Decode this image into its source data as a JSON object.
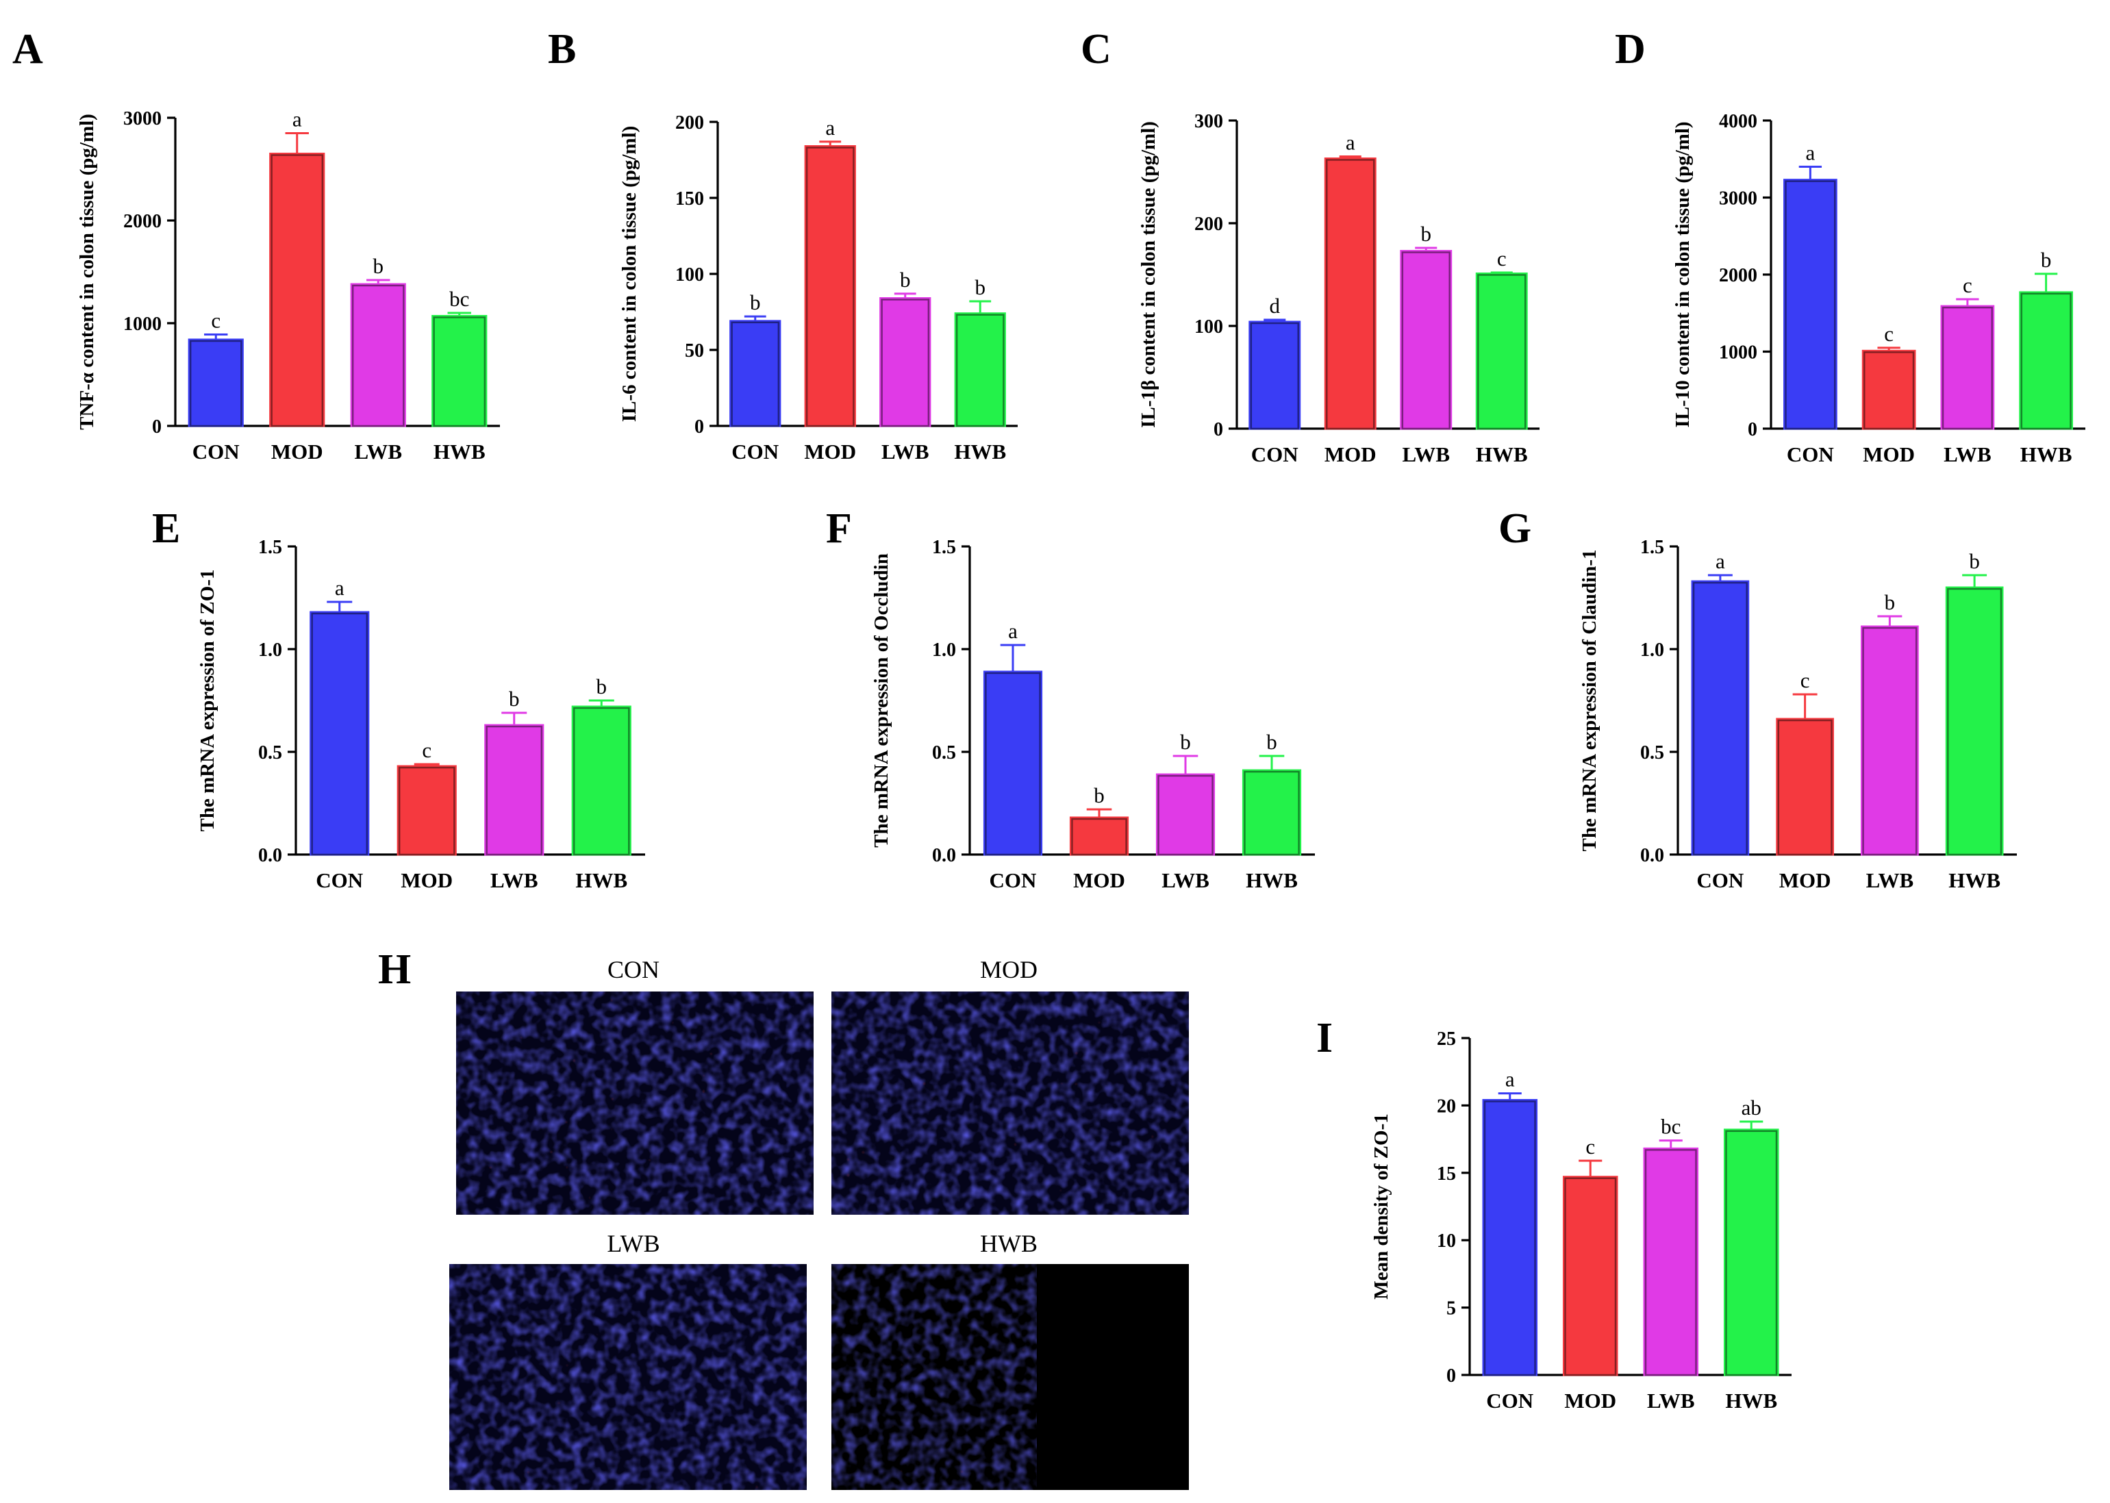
{
  "figure": {
    "panel_labels": [
      "A",
      "B",
      "C",
      "D",
      "E",
      "F",
      "G",
      "H",
      "I"
    ]
  },
  "colors": {
    "CON": "#3a3df5",
    "MOD": "#f5393f",
    "LWB": "#e03ae6",
    "HWB": "#23f24a"
  },
  "micrographs": {
    "panel": "H",
    "titles": [
      "CON",
      "MOD",
      "LWB",
      "HWB"
    ]
  },
  "chart_data": [
    {
      "id": "A",
      "type": "bar",
      "ylabel": "TNF-α content in colon tissue (pg/ml)",
      "categories": [
        "CON",
        "MOD",
        "LWB",
        "HWB"
      ],
      "values": [
        840,
        2650,
        1380,
        1070
      ],
      "errors": [
        50,
        200,
        40,
        30
      ],
      "significance": [
        "c",
        "a",
        "b",
        "bc"
      ],
      "ylim": [
        0,
        3000
      ],
      "yticks": [
        0,
        1000,
        2000,
        3000
      ],
      "ytick_labels": [
        "0",
        "1000",
        "2000",
        "3000"
      ]
    },
    {
      "id": "B",
      "type": "bar",
      "ylabel": "IL-6 content in colon tissue (pg/ml)",
      "categories": [
        "CON",
        "MOD",
        "LWB",
        "HWB"
      ],
      "values": [
        69,
        184,
        84,
        74
      ],
      "errors": [
        3,
        3,
        3,
        8
      ],
      "significance": [
        "b",
        "a",
        "b",
        "b"
      ],
      "ylim": [
        0,
        200
      ],
      "yticks": [
        0,
        50,
        100,
        150,
        200
      ],
      "ytick_labels": [
        "0",
        "50",
        "100",
        "150",
        "200"
      ]
    },
    {
      "id": "C",
      "type": "bar",
      "ylabel": "IL-1β content in colon tissue (pg/ml)",
      "categories": [
        "CON",
        "MOD",
        "LWB",
        "HWB"
      ],
      "values": [
        104,
        263,
        173,
        151
      ],
      "errors": [
        2,
        2,
        3,
        1
      ],
      "significance": [
        "d",
        "a",
        "b",
        "c"
      ],
      "ylim": [
        0,
        300
      ],
      "yticks": [
        0,
        100,
        200,
        300
      ],
      "ytick_labels": [
        "0",
        "100",
        "200",
        "300"
      ]
    },
    {
      "id": "D",
      "type": "bar",
      "ylabel": "IL-10 content in colon tissue (pg/ml)",
      "categories": [
        "CON",
        "MOD",
        "LWB",
        "HWB"
      ],
      "values": [
        3230,
        1010,
        1590,
        1770
      ],
      "errors": [
        170,
        40,
        90,
        240
      ],
      "significance": [
        "a",
        "c",
        "c",
        "b"
      ],
      "ylim": [
        0,
        4000
      ],
      "yticks": [
        0,
        1000,
        2000,
        3000,
        4000
      ],
      "ytick_labels": [
        "0",
        "1000",
        "2000",
        "3000",
        "4000"
      ]
    },
    {
      "id": "E",
      "type": "bar",
      "ylabel": "The mRNA expression of ZO-1",
      "categories": [
        "CON",
        "MOD",
        "LWB",
        "HWB"
      ],
      "values": [
        1.18,
        0.43,
        0.63,
        0.72
      ],
      "errors": [
        0.05,
        0.01,
        0.06,
        0.03
      ],
      "significance": [
        "a",
        "c",
        "b",
        "b"
      ],
      "ylim": [
        0,
        1.5
      ],
      "yticks": [
        0,
        0.5,
        1.0,
        1.5
      ],
      "ytick_labels": [
        "0.0",
        "0.5",
        "1.0",
        "1.5"
      ]
    },
    {
      "id": "F",
      "type": "bar",
      "ylabel": "The mRNA expression of Occludin",
      "categories": [
        "CON",
        "MOD",
        "LWB",
        "HWB"
      ],
      "values": [
        0.89,
        0.18,
        0.39,
        0.41
      ],
      "errors": [
        0.13,
        0.04,
        0.09,
        0.07
      ],
      "significance": [
        "a",
        "b",
        "b",
        "b"
      ],
      "ylim": [
        0,
        1.5
      ],
      "yticks": [
        0,
        0.5,
        1.0,
        1.5
      ],
      "ytick_labels": [
        "0.0",
        "0.5",
        "1.0",
        "1.5"
      ]
    },
    {
      "id": "G",
      "type": "bar",
      "ylabel": "The mRNA expression of Claudin-1",
      "categories": [
        "CON",
        "MOD",
        "LWB",
        "HWB"
      ],
      "values": [
        1.33,
        0.66,
        1.11,
        1.3
      ],
      "errors": [
        0.03,
        0.12,
        0.05,
        0.06
      ],
      "significance": [
        "a",
        "c",
        "b",
        "b"
      ],
      "ylim": [
        0,
        1.5
      ],
      "yticks": [
        0,
        0.5,
        1.0,
        1.5
      ],
      "ytick_labels": [
        "0.0",
        "0.5",
        "1.0",
        "1.5"
      ]
    },
    {
      "id": "I",
      "type": "bar",
      "ylabel": "Mean density of ZO-1",
      "categories": [
        "CON",
        "MOD",
        "LWB",
        "HWB"
      ],
      "values": [
        20.4,
        14.7,
        16.8,
        18.2
      ],
      "errors": [
        0.5,
        1.2,
        0.6,
        0.6
      ],
      "significance": [
        "a",
        "c",
        "bc",
        "ab"
      ],
      "ylim": [
        0,
        25
      ],
      "yticks": [
        0,
        5,
        10,
        15,
        20,
        25
      ],
      "ytick_labels": [
        "0",
        "5",
        "10",
        "15",
        "20",
        "25"
      ]
    }
  ]
}
